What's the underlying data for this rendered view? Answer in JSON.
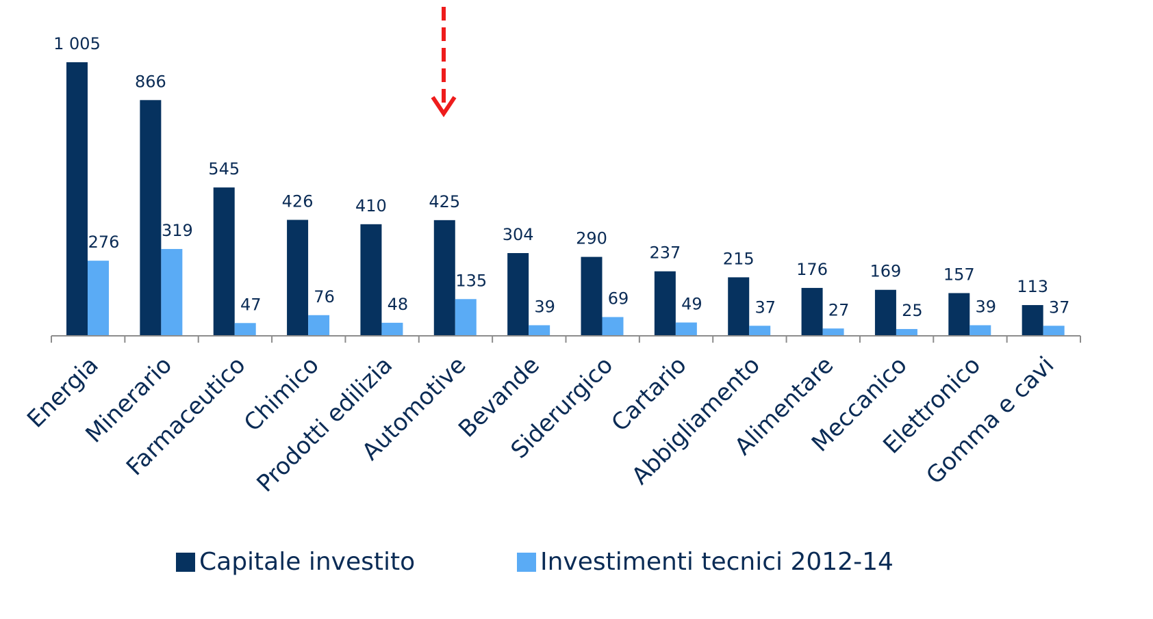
{
  "chart_data": {
    "type": "bar",
    "categories": [
      "Energia",
      "Minerario",
      "Farmaceutico",
      "Chimico",
      "Prodotti edilizia",
      "Automotive",
      "Bevande",
      "Siderurgico",
      "Cartario",
      "Abbigliamento",
      "Alimentare",
      "Meccanico",
      "Elettronico",
      "Gomma e cavi"
    ],
    "series": [
      {
        "name": "Capitale investito",
        "color": "#06325f",
        "values": [
          1005,
          866,
          545,
          426,
          410,
          425,
          304,
          290,
          237,
          215,
          176,
          169,
          157,
          113
        ],
        "value_labels": [
          "1 005",
          "866",
          "545",
          "426",
          "410",
          "425",
          "304",
          "290",
          "237",
          "215",
          "176",
          "169",
          "157",
          "113"
        ]
      },
      {
        "name": "Investimenti tecnici 2012-14",
        "color": "#5aabf5",
        "values": [
          276,
          319,
          47,
          76,
          48,
          135,
          39,
          69,
          49,
          37,
          27,
          25,
          39,
          37
        ]
      }
    ]
  }
}
